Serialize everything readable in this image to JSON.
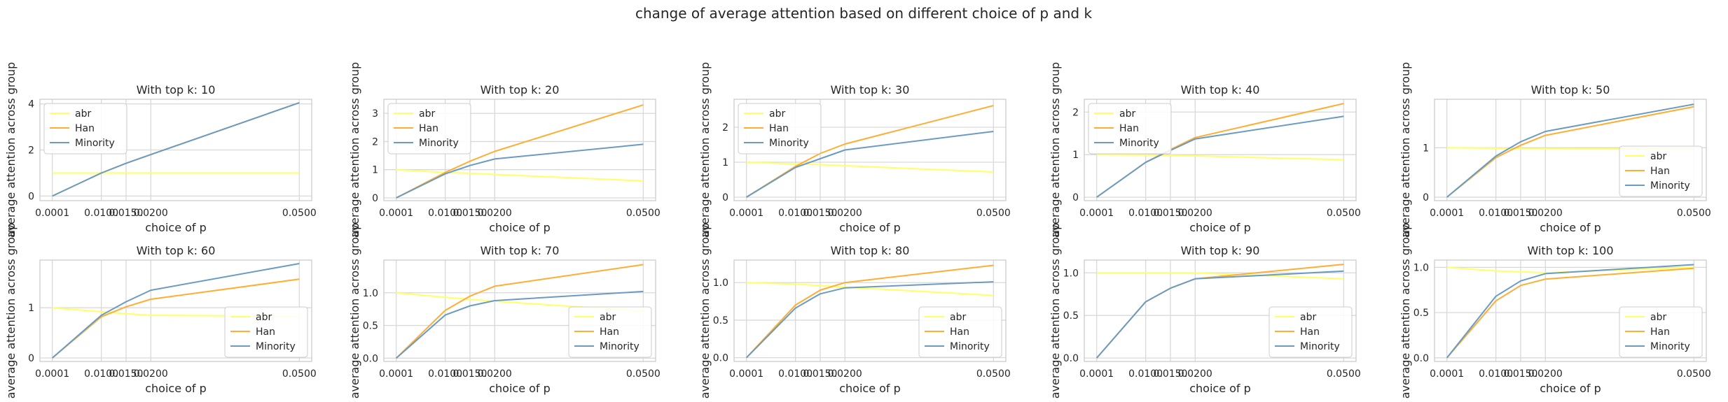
{
  "title": "change of average attention based on different choice of p and k",
  "colors": {
    "abr": "#ffff66",
    "Han": "#ffad33",
    "Minority": "#6a9bc3",
    "grid": "#d9d9d9",
    "frame": "#cccccc",
    "text": "#262626"
  },
  "chart_data": [
    {
      "type": "line",
      "title": "With top k: 10",
      "xlabel": "choice of p",
      "ylabel": "average attention across group",
      "x": [
        0.0001,
        0.01,
        0.015,
        0.02,
        0.05
      ],
      "xticks": [
        "0.0001",
        "0.0100",
        "0.0150",
        "0.0200",
        "0.0500"
      ],
      "ylim": [
        -0.2,
        4.2
      ],
      "yticks": [
        0,
        2,
        4
      ],
      "ytick_labels": [
        "0",
        "2",
        "4"
      ],
      "legend": "top-left",
      "series": [
        {
          "name": "abr",
          "values": [
            1.0,
            1.0,
            1.0,
            1.0,
            1.0
          ]
        },
        {
          "name": "Han",
          "values": [
            0.0,
            1.0,
            1.42,
            1.8,
            4.05
          ]
        },
        {
          "name": "Minority",
          "values": [
            0.0,
            1.0,
            1.42,
            1.8,
            4.05
          ]
        }
      ]
    },
    {
      "type": "line",
      "title": "With top k: 20",
      "xlabel": "choice of p",
      "ylabel": "average attention across group",
      "x": [
        0.0001,
        0.01,
        0.015,
        0.02,
        0.05
      ],
      "xticks": [
        "0.0001",
        "0.0100",
        "0.0150",
        "0.0200",
        "0.0500"
      ],
      "ylim": [
        -0.1,
        3.5
      ],
      "yticks": [
        0,
        1,
        2,
        3
      ],
      "ytick_labels": [
        "0",
        "1",
        "2",
        "3"
      ],
      "legend": "top-left",
      "series": [
        {
          "name": "abr",
          "values": [
            1.0,
            0.9,
            0.87,
            0.83,
            0.6
          ]
        },
        {
          "name": "Han",
          "values": [
            0.0,
            0.9,
            1.3,
            1.65,
            3.3
          ]
        },
        {
          "name": "Minority",
          "values": [
            0.0,
            0.85,
            1.15,
            1.38,
            1.9
          ]
        }
      ]
    },
    {
      "type": "line",
      "title": "With top k: 30",
      "xlabel": "choice of p",
      "ylabel": "average attention across group",
      "x": [
        0.0001,
        0.01,
        0.015,
        0.02,
        0.05
      ],
      "xticks": [
        "0.0001",
        "0.0100",
        "0.0150",
        "0.0200",
        "0.0500"
      ],
      "ylim": [
        -0.1,
        2.8
      ],
      "yticks": [
        0,
        1,
        2
      ],
      "ytick_labels": [
        "0",
        "1",
        "2"
      ],
      "legend": "top-left",
      "series": [
        {
          "name": "abr",
          "values": [
            1.0,
            0.95,
            0.93,
            0.9,
            0.72
          ]
        },
        {
          "name": "Han",
          "values": [
            0.0,
            0.88,
            1.25,
            1.52,
            2.62
          ]
        },
        {
          "name": "Minority",
          "values": [
            0.0,
            0.85,
            1.1,
            1.35,
            1.88
          ]
        }
      ]
    },
    {
      "type": "line",
      "title": "With top k: 40",
      "xlabel": "choice of p",
      "ylabel": "average attention across group",
      "x": [
        0.0001,
        0.01,
        0.015,
        0.02,
        0.05
      ],
      "xticks": [
        "0.0001",
        "0.0100",
        "0.0150",
        "0.0200",
        "0.0500"
      ],
      "ylim": [
        -0.08,
        2.3
      ],
      "yticks": [
        0,
        1,
        2
      ],
      "ytick_labels": [
        "0",
        "1",
        "2"
      ],
      "legend": "top-left",
      "series": [
        {
          "name": "abr",
          "values": [
            1.0,
            0.99,
            0.98,
            0.97,
            0.88
          ]
        },
        {
          "name": "Han",
          "values": [
            0.0,
            0.82,
            1.12,
            1.4,
            2.2
          ]
        },
        {
          "name": "Minority",
          "values": [
            0.0,
            0.82,
            1.1,
            1.37,
            1.9
          ]
        }
      ]
    },
    {
      "type": "line",
      "title": "With top k: 50",
      "xlabel": "choice of p",
      "ylabel": "average attention across group",
      "x": [
        0.0001,
        0.01,
        0.015,
        0.02,
        0.05
      ],
      "xticks": [
        "0.0001",
        "0.0100",
        "0.0150",
        "0.0200",
        "0.0500"
      ],
      "ylim": [
        -0.07,
        1.98
      ],
      "yticks": [
        0,
        1
      ],
      "ytick_labels": [
        "0",
        "1"
      ],
      "legend": "bottom-right",
      "series": [
        {
          "name": "abr",
          "values": [
            1.0,
            0.99,
            0.98,
            0.98,
            0.97
          ]
        },
        {
          "name": "Han",
          "values": [
            0.0,
            0.8,
            1.05,
            1.25,
            1.83
          ]
        },
        {
          "name": "Minority",
          "values": [
            0.0,
            0.83,
            1.12,
            1.33,
            1.88
          ]
        }
      ]
    },
    {
      "type": "line",
      "title": "With top k: 60",
      "xlabel": "choice of p",
      "ylabel": "average attention across group",
      "x": [
        0.0001,
        0.01,
        0.015,
        0.02,
        0.05
      ],
      "xticks": [
        "0.0001",
        "0.0100",
        "0.0150",
        "0.0200",
        "0.0500"
      ],
      "ylim": [
        -0.07,
        1.95
      ],
      "yticks": [
        0,
        1
      ],
      "ytick_labels": [
        "0",
        "1"
      ],
      "legend": "bottom-right",
      "series": [
        {
          "name": "abr",
          "values": [
            1.0,
            0.92,
            0.88,
            0.85,
            0.83
          ]
        },
        {
          "name": "Han",
          "values": [
            0.0,
            0.82,
            1.02,
            1.17,
            1.57
          ]
        },
        {
          "name": "Minority",
          "values": [
            0.0,
            0.85,
            1.12,
            1.35,
            1.88
          ]
        }
      ]
    },
    {
      "type": "line",
      "title": "With top k: 70",
      "xlabel": "choice of p",
      "ylabel": "average attention across group",
      "x": [
        0.0001,
        0.01,
        0.015,
        0.02,
        0.05
      ],
      "xticks": [
        "0.0001",
        "0.0100",
        "0.0150",
        "0.0200",
        "0.0500"
      ],
      "ylim": [
        -0.05,
        1.5
      ],
      "yticks": [
        0,
        0.5,
        1.0
      ],
      "ytick_labels": [
        "0.0",
        "0.5",
        "1.0"
      ],
      "legend": "bottom-right",
      "series": [
        {
          "name": "abr",
          "values": [
            1.0,
            0.93,
            0.9,
            0.87,
            0.72
          ]
        },
        {
          "name": "Han",
          "values": [
            0.0,
            0.73,
            0.95,
            1.1,
            1.43
          ]
        },
        {
          "name": "Minority",
          "values": [
            0.0,
            0.66,
            0.8,
            0.88,
            1.02
          ]
        }
      ]
    },
    {
      "type": "line",
      "title": "With top k: 80",
      "xlabel": "choice of p",
      "ylabel": "average attention across group",
      "x": [
        0.0001,
        0.01,
        0.015,
        0.02,
        0.05
      ],
      "xticks": [
        "0.0001",
        "0.0100",
        "0.0150",
        "0.0200",
        "0.0500"
      ],
      "ylim": [
        -0.05,
        1.3
      ],
      "yticks": [
        0,
        0.5,
        1.0
      ],
      "ytick_labels": [
        "0.0",
        "0.5",
        "1.0"
      ],
      "legend": "bottom-right",
      "series": [
        {
          "name": "abr",
          "values": [
            1.0,
            0.98,
            0.96,
            0.94,
            0.83
          ]
        },
        {
          "name": "Han",
          "values": [
            0.0,
            0.7,
            0.9,
            1.0,
            1.23
          ]
        },
        {
          "name": "Minority",
          "values": [
            0.0,
            0.66,
            0.85,
            0.93,
            1.01
          ]
        }
      ]
    },
    {
      "type": "line",
      "title": "With top k: 90",
      "xlabel": "choice of p",
      "ylabel": "average attention across group",
      "x": [
        0.0001,
        0.01,
        0.015,
        0.02,
        0.05
      ],
      "xticks": [
        "0.0001",
        "0.0100",
        "0.0150",
        "0.0200",
        "0.0500"
      ],
      "ylim": [
        -0.04,
        1.15
      ],
      "yticks": [
        0,
        0.5,
        1.0
      ],
      "ytick_labels": [
        "0.0",
        "0.5",
        "1.0"
      ],
      "legend": "bottom-right",
      "series": [
        {
          "name": "abr",
          "values": [
            1.0,
            1.0,
            1.0,
            1.0,
            0.93
          ]
        },
        {
          "name": "Han",
          "values": [
            0.0,
            0.66,
            0.82,
            0.93,
            1.1
          ]
        },
        {
          "name": "Minority",
          "values": [
            0.0,
            0.66,
            0.82,
            0.93,
            1.02
          ]
        }
      ]
    },
    {
      "type": "line",
      "title": "With top k: 100",
      "xlabel": "choice of p",
      "ylabel": "average attention across group",
      "x": [
        0.0001,
        0.01,
        0.015,
        0.02,
        0.05
      ],
      "xticks": [
        "0.0001",
        "0.0100",
        "0.0150",
        "0.0200",
        "0.0500"
      ],
      "ylim": [
        -0.04,
        1.08
      ],
      "yticks": [
        0,
        0.5,
        1.0
      ],
      "ytick_labels": [
        "0.0",
        "0.5",
        "1.0"
      ],
      "legend": "bottom-right",
      "series": [
        {
          "name": "abr",
          "values": [
            1.0,
            0.96,
            0.95,
            0.94,
            1.0
          ]
        },
        {
          "name": "Han",
          "values": [
            0.0,
            0.63,
            0.8,
            0.87,
            0.99
          ]
        },
        {
          "name": "Minority",
          "values": [
            0.0,
            0.68,
            0.85,
            0.93,
            1.03
          ]
        }
      ]
    }
  ]
}
